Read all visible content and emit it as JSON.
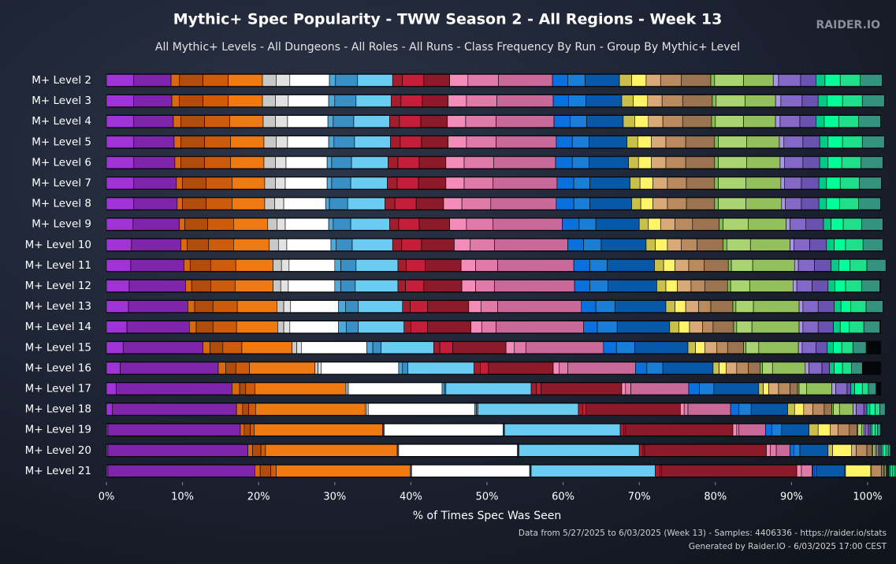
{
  "chart_data": {
    "type": "stacked-bar-horizontal",
    "title": "Mythic+ Spec Popularity - TWW Season 2 - All Regions - Week 13",
    "subtitle": "All Mythic+ Levels - All Dungeons - All Roles - All Runs - Class Frequency By Run - Group By Mythic+ Level",
    "brand": "RAIDER.IO",
    "x_label": "% of Times Spec Was Seen",
    "footer": [
      "Data from 5/27/2025 to 6/03/2025 (Week 13) - Samples: 4406336 - https://raider.io/stats",
      "Generated by Raider.IO - 6/03/2025 17:00 CEST"
    ],
    "categories": [
      "M+ Level 2",
      "M+ Level 3",
      "M+ Level 4",
      "M+ Level 5",
      "M+ Level 6",
      "M+ Level 7",
      "M+ Level 8",
      "M+ Level 9",
      "M+ Level 10",
      "M+ Level 11",
      "M+ Level 12",
      "M+ Level 13",
      "M+ Level 14",
      "M+ Level 15",
      "M+ Level 16",
      "M+ Level 17",
      "M+ Level 18",
      "M+ Level 19",
      "M+ Level 20",
      "M+ Level 21"
    ],
    "xlim": [
      0,
      100
    ],
    "xticks": [
      {
        "value": 0,
        "label": "0%"
      },
      {
        "value": 10,
        "label": "10%"
      },
      {
        "value": 20,
        "label": "20%"
      },
      {
        "value": 30,
        "label": "30%"
      },
      {
        "value": 40,
        "label": "40%"
      },
      {
        "value": 50,
        "label": "50%"
      },
      {
        "value": 60,
        "label": "60%"
      },
      {
        "value": 70,
        "label": "70%"
      },
      {
        "value": 80,
        "label": "80%"
      },
      {
        "value": 90,
        "label": "90%"
      },
      {
        "value": 100,
        "label": "100%"
      }
    ],
    "series": [
      {
        "color": "#a033d6",
        "values": [
          3.6,
          3.6,
          3.6,
          3.6,
          3.6,
          3.6,
          3.6,
          3.5,
          3.3,
          3.2,
          3.0,
          2.9,
          2.7,
          2.2,
          1.8,
          1.3,
          0.8,
          0.2,
          0.2,
          0.2
        ]
      },
      {
        "color": "#7e25ab",
        "values": [
          4.9,
          5.0,
          5.2,
          5.3,
          5.4,
          5.6,
          5.7,
          6.1,
          6.5,
          7.0,
          7.4,
          7.8,
          8.2,
          10.5,
          12.9,
          15.2,
          16.3,
          17.4,
          18.4,
          19.3
        ]
      },
      {
        "color": "#d9690f",
        "values": [
          1.1,
          1.0,
          1.0,
          0.9,
          0.8,
          0.8,
          0.7,
          0.7,
          0.8,
          0.8,
          0.8,
          0.9,
          0.9,
          0.9,
          1.0,
          1.0,
          0.8,
          0.5,
          0.6,
          0.7
        ]
      },
      {
        "color": "#b04c0c",
        "values": [
          3.1,
          3.1,
          3.1,
          3.1,
          3.1,
          3.1,
          3.1,
          3.0,
          2.8,
          2.7,
          2.5,
          2.4,
          2.2,
          1.7,
          1.3,
          0.8,
          0.8,
          0.8,
          1.1,
          1.4
        ]
      },
      {
        "color": "#cc5c0c",
        "values": [
          3.3,
          3.3,
          3.3,
          3.4,
          3.4,
          3.4,
          3.4,
          3.4,
          3.3,
          3.3,
          3.2,
          3.2,
          3.1,
          2.5,
          1.8,
          1.2,
          0.9,
          0.5,
          0.6,
          0.7
        ]
      },
      {
        "color": "#f07a12",
        "values": [
          4.5,
          4.5,
          4.4,
          4.4,
          4.4,
          4.3,
          4.3,
          4.5,
          4.7,
          4.9,
          5.0,
          5.2,
          5.4,
          6.6,
          8.6,
          11.9,
          14.4,
          16.9,
          17.3,
          17.6
        ]
      },
      {
        "color": "#c8c8c8",
        "values": [
          1.8,
          1.7,
          1.6,
          1.6,
          1.5,
          1.4,
          1.3,
          1.2,
          1.2,
          1.1,
          1.0,
          0.9,
          0.8,
          0.6,
          0.4,
          0.2,
          0.2,
          0.1,
          0.1,
          0.1
        ]
      },
      {
        "color": "#e2e2e2",
        "values": [
          1.8,
          1.7,
          1.6,
          1.5,
          1.4,
          1.3,
          1.2,
          1.1,
          1.1,
          1.0,
          1.0,
          0.9,
          0.8,
          0.6,
          0.4,
          0.2,
          0.2,
          0.1,
          0.1,
          0.1
        ]
      },
      {
        "color": "#ffffff",
        "values": [
          5.2,
          5.3,
          5.3,
          5.4,
          5.4,
          5.5,
          5.5,
          5.7,
          5.8,
          6.0,
          6.1,
          6.3,
          6.4,
          8.6,
          10.2,
          12.3,
          14.0,
          15.6,
          15.6,
          15.5
        ]
      },
      {
        "color": "#4fa8d8",
        "values": [
          0.8,
          0.8,
          0.7,
          0.7,
          0.6,
          0.6,
          0.5,
          0.6,
          0.7,
          0.8,
          0.8,
          0.9,
          1.0,
          0.8,
          0.5,
          0.3,
          0.2,
          0.1,
          0.1,
          0.1
        ]
      },
      {
        "color": "#3a8fc4",
        "values": [
          2.9,
          2.8,
          2.7,
          2.7,
          2.6,
          2.5,
          2.4,
          2.3,
          2.1,
          2.0,
          1.9,
          1.7,
          1.6,
          1.1,
          0.7,
          0.2,
          0.2,
          0.1,
          0.1,
          0.1
        ]
      },
      {
        "color": "#69ccf0",
        "values": [
          4.6,
          4.6,
          4.7,
          4.7,
          4.8,
          4.8,
          4.9,
          5.1,
          5.3,
          5.5,
          5.6,
          5.8,
          6.0,
          6.9,
          8.7,
          11.2,
          13.2,
          15.2,
          15.8,
          16.3
        ]
      },
      {
        "color": "#a01e2d",
        "values": [
          1.3,
          1.3,
          1.3,
          1.3,
          1.3,
          1.3,
          1.3,
          1.2,
          1.2,
          1.1,
          1.0,
          1.0,
          0.9,
          0.8,
          0.8,
          0.7,
          0.6,
          0.5,
          0.5,
          0.6
        ]
      },
      {
        "color": "#c41e3a",
        "values": [
          2.8,
          2.8,
          2.8,
          2.8,
          2.8,
          2.8,
          2.8,
          2.7,
          2.6,
          2.5,
          2.4,
          2.3,
          2.2,
          1.7,
          1.1,
          0.6,
          0.4,
          0.2,
          0.2,
          0.2
        ]
      },
      {
        "color": "#8c1a2a",
        "values": [
          3.4,
          3.4,
          3.5,
          3.5,
          3.5,
          3.6,
          3.6,
          4.0,
          4.3,
          4.7,
          5.0,
          5.4,
          5.7,
          7.0,
          8.5,
          10.6,
          12.4,
          14.1,
          16.0,
          17.8
        ]
      },
      {
        "color": "#f48cba",
        "values": [
          2.4,
          2.4,
          2.4,
          2.4,
          2.4,
          2.4,
          2.4,
          2.2,
          2.1,
          1.9,
          1.8,
          1.6,
          1.4,
          1.1,
          0.8,
          0.5,
          0.5,
          0.5,
          0.5,
          0.6
        ]
      },
      {
        "color": "#e07aa8",
        "values": [
          4.0,
          4.0,
          4.0,
          3.9,
          3.9,
          3.8,
          3.8,
          3.5,
          3.2,
          2.9,
          2.5,
          2.2,
          1.9,
          1.5,
          1.1,
          0.7,
          0.5,
          0.3,
          0.8,
          1.4
        ]
      },
      {
        "color": "#c8699a",
        "values": [
          7.1,
          7.4,
          7.6,
          7.9,
          8.1,
          8.4,
          8.6,
          9.1,
          9.6,
          10.0,
          10.5,
          11.0,
          11.5,
          10.2,
          8.9,
          7.6,
          5.6,
          3.5,
          1.8,
          0.1
        ]
      },
      {
        "color": "#0a70dd",
        "values": [
          2.0,
          2.0,
          2.1,
          2.1,
          2.2,
          2.2,
          2.3,
          2.2,
          2.1,
          2.1,
          2.0,
          1.9,
          1.8,
          1.7,
          1.5,
          1.4,
          1.1,
          0.8,
          0.5,
          0.2
        ]
      },
      {
        "color": "#1a7ed6",
        "values": [
          2.3,
          2.3,
          2.2,
          2.2,
          2.2,
          2.1,
          2.1,
          2.2,
          2.3,
          2.3,
          2.4,
          2.5,
          2.6,
          2.4,
          2.1,
          1.9,
          1.6,
          1.3,
          0.8,
          0.2
        ]
      },
      {
        "color": "#0858a8",
        "values": [
          4.5,
          4.7,
          4.8,
          5.0,
          5.2,
          5.3,
          5.5,
          5.7,
          5.9,
          6.2,
          6.4,
          6.7,
          6.9,
          7.0,
          6.6,
          5.9,
          4.8,
          3.6,
          3.7,
          3.8
        ]
      },
      {
        "color": "#c8c04a",
        "values": [
          1.6,
          1.5,
          1.5,
          1.4,
          1.3,
          1.3,
          1.2,
          1.2,
          1.2,
          1.2,
          1.2,
          1.2,
          1.2,
          1.0,
          0.8,
          0.6,
          0.9,
          1.2,
          0.6,
          0.1
        ]
      },
      {
        "color": "#fff468",
        "values": [
          1.9,
          1.9,
          1.8,
          1.8,
          1.7,
          1.7,
          1.6,
          1.6,
          1.6,
          1.5,
          1.5,
          1.4,
          1.4,
          1.2,
          0.9,
          0.7,
          1.2,
          1.6,
          2.5,
          3.3
        ]
      },
      {
        "color": "#d9aa78",
        "values": [
          1.9,
          1.9,
          1.9,
          1.9,
          1.9,
          1.9,
          1.9,
          1.9,
          1.8,
          1.8,
          1.8,
          1.7,
          1.7,
          1.6,
          1.4,
          1.3,
          1.2,
          1.0,
          0.6,
          0.1
        ]
      },
      {
        "color": "#b88a5e",
        "values": [
          2.7,
          2.7,
          2.6,
          2.6,
          2.6,
          2.5,
          2.5,
          2.3,
          2.1,
          2.0,
          1.8,
          1.6,
          1.4,
          1.4,
          1.5,
          1.5,
          1.5,
          1.5,
          1.4,
          1.3
        ]
      },
      {
        "color": "#9a7350",
        "values": [
          3.9,
          3.9,
          3.8,
          3.8,
          3.8,
          3.7,
          3.7,
          3.5,
          3.4,
          3.2,
          3.0,
          2.9,
          2.7,
          2.1,
          1.6,
          1.0,
          1.0,
          1.0,
          0.7,
          0.3
        ]
      },
      {
        "color": "#80c050",
        "values": [
          0.5,
          0.5,
          0.5,
          0.5,
          0.5,
          0.5,
          0.5,
          0.5,
          0.5,
          0.4,
          0.4,
          0.4,
          0.4,
          0.3,
          0.3,
          0.2,
          0.2,
          0.1,
          0.1,
          0.1
        ]
      },
      {
        "color": "#aad372",
        "values": [
          3.8,
          3.8,
          3.7,
          3.7,
          3.7,
          3.6,
          3.6,
          3.3,
          3.1,
          2.8,
          2.5,
          2.3,
          2.0,
          1.7,
          1.3,
          1.0,
          0.8,
          0.5,
          0.3,
          0.2
        ]
      },
      {
        "color": "#93c05c",
        "values": [
          3.9,
          4.0,
          4.2,
          4.3,
          4.4,
          4.6,
          4.7,
          5.0,
          5.2,
          5.5,
          5.7,
          6.0,
          6.2,
          5.2,
          4.3,
          3.3,
          1.8,
          0.3,
          0.2,
          0.1
        ]
      },
      {
        "color": "#a898e6",
        "values": [
          0.7,
          0.7,
          0.6,
          0.6,
          0.6,
          0.5,
          0.5,
          0.5,
          0.5,
          0.5,
          0.5,
          0.5,
          0.5,
          0.5,
          0.5,
          0.5,
          0.4,
          0.2,
          0.2,
          0.1
        ]
      },
      {
        "color": "#8468c8",
        "values": [
          2.9,
          2.8,
          2.6,
          2.5,
          2.4,
          2.2,
          2.1,
          2.1,
          2.1,
          2.1,
          2.0,
          2.0,
          2.0,
          1.8,
          1.7,
          1.5,
          1.0,
          0.4,
          0.2,
          0.1
        ]
      },
      {
        "color": "#6a52b0",
        "values": [
          2.0,
          2.1,
          2.1,
          2.2,
          2.2,
          2.3,
          2.3,
          2.3,
          2.2,
          2.2,
          2.1,
          2.1,
          2.0,
          1.5,
          1.0,
          0.5,
          0.4,
          0.3,
          0.2,
          0.1
        ]
      },
      {
        "color": "#00cc88",
        "values": [
          1.2,
          1.2,
          1.1,
          1.1,
          1.1,
          1.0,
          1.0,
          1.0,
          1.0,
          1.0,
          0.9,
          0.9,
          0.9,
          0.8,
          0.6,
          0.5,
          0.4,
          0.2,
          0.2,
          0.2
        ]
      },
      {
        "color": "#00ff98",
        "values": [
          2.0,
          2.0,
          1.9,
          1.9,
          1.8,
          1.8,
          1.7,
          1.6,
          1.5,
          1.5,
          1.4,
          1.3,
          1.2,
          1.1,
          1.1,
          1.0,
          0.7,
          0.4,
          0.4,
          0.3
        ]
      },
      {
        "color": "#1fe08a",
        "values": [
          2.6,
          2.6,
          2.6,
          2.6,
          2.5,
          2.5,
          2.5,
          2.4,
          2.3,
          2.2,
          2.1,
          2.0,
          1.9,
          1.5,
          1.2,
          0.8,
          0.6,
          0.3,
          0.3,
          0.3
        ]
      },
      {
        "color": "#33937f",
        "values": [
          2.9,
          2.9,
          2.9,
          2.9,
          2.9,
          2.9,
          2.9,
          2.8,
          2.6,
          2.5,
          2.4,
          2.2,
          2.1,
          1.7,
          1.4,
          1.0,
          0.7,
          0.4,
          0.3,
          0.2
        ]
      }
    ]
  }
}
